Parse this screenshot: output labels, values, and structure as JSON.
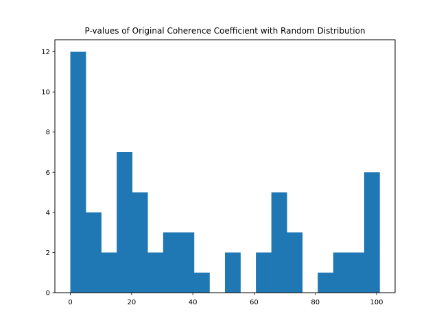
{
  "chart_data": {
    "type": "bar",
    "subtype": "histogram",
    "title": "P-values of Original Coherence Coefficient with Random Distribution",
    "xlabel": "",
    "ylabel": "",
    "color": "#1f77b4",
    "xlim": [
      -5.05,
      106.05
    ],
    "ylim": [
      0,
      12.6
    ],
    "x_ticks": [
      0,
      20,
      40,
      60,
      80,
      100
    ],
    "y_ticks": [
      0,
      2,
      4,
      6,
      8,
      10,
      12
    ],
    "bin_edges": [
      0,
      5.05,
      10.1,
      15.15,
      20.2,
      25.25,
      30.3,
      35.35,
      40.4,
      45.45,
      50.5,
      55.55,
      60.6,
      65.65,
      70.7,
      75.75,
      80.8,
      85.85,
      90.9,
      95.95,
      101
    ],
    "counts": [
      12,
      4,
      2,
      7,
      5,
      2,
      3,
      3,
      1,
      0,
      2,
      0,
      2,
      5,
      3,
      0,
      1,
      2,
      2,
      6
    ],
    "grid": false,
    "legend": "none"
  }
}
